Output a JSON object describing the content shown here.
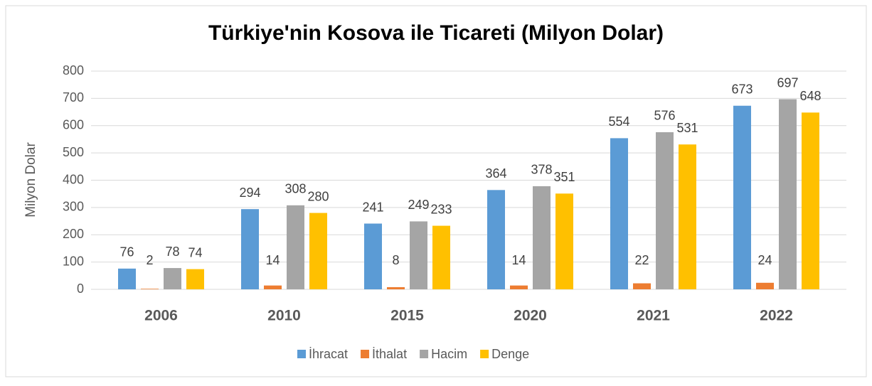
{
  "chart_data": {
    "type": "bar",
    "title": "Türkiye'nin Kosova ile Ticareti (Milyon Dolar)",
    "y_label": "Milyon Dolar",
    "categories": [
      "2006",
      "2010",
      "2015",
      "2020",
      "2021",
      "2022"
    ],
    "series": [
      {
        "name": "İhracat",
        "color": "#5b9bd5",
        "values": [
          76,
          294,
          241,
          364,
          554,
          673
        ]
      },
      {
        "name": "İthalat",
        "color": "#ed7d31",
        "values": [
          2,
          14,
          8,
          14,
          22,
          24
        ]
      },
      {
        "name": "Hacim",
        "color": "#a5a5a5",
        "values": [
          78,
          308,
          249,
          378,
          576,
          697
        ]
      },
      {
        "name": "Denge",
        "color": "#ffc000",
        "values": [
          74,
          280,
          233,
          351,
          531,
          648
        ]
      }
    ],
    "ylim": [
      0,
      800
    ],
    "yticks": [
      0,
      100,
      200,
      300,
      400,
      500,
      600,
      700,
      800
    ],
    "grid": true,
    "legend": "bottom"
  }
}
